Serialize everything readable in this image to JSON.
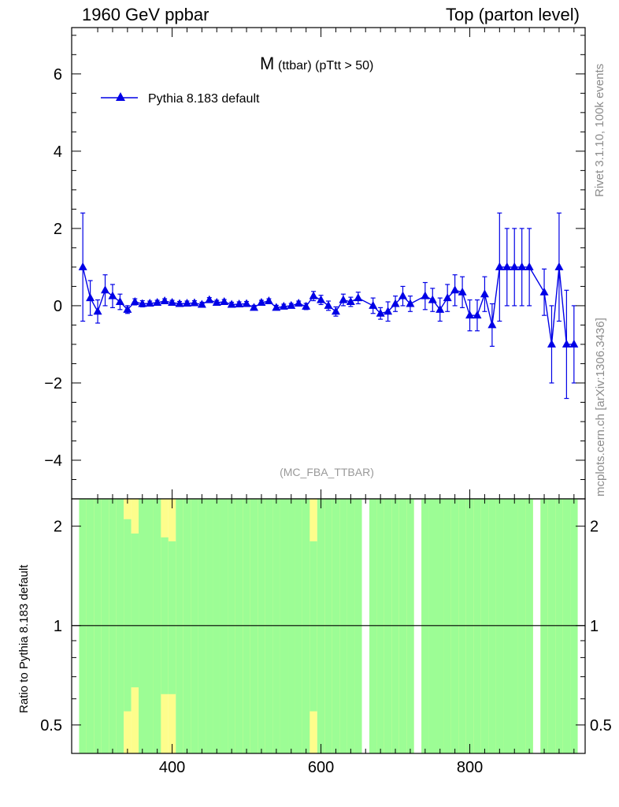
{
  "header": {
    "left": "1960 GeV ppbar",
    "right": "Top (parton level)"
  },
  "side": {
    "rivet": "Rivet 3.1.10,  100k events",
    "mcplots": "mcplots.cern.ch [arXiv:1306.3436]"
  },
  "colors": {
    "series": "#0000e6",
    "band_inner": "#9cfd95",
    "band_outer": "#fdfd8c",
    "axis": "#000000"
  },
  "chart_data": [
    {
      "type": "line",
      "title_main": "M",
      "title_sub": "(ttbar) (pTtt > 50)",
      "watermark": "(MC_FBA_TTBAR)",
      "legend": "Pythia 8.183 default",
      "legend_position": "top-left",
      "xlim": [
        265,
        955
      ],
      "ylim": [
        -5.0,
        7.2
      ],
      "y_ticks": [
        -4,
        -2,
        0,
        2,
        4,
        6
      ],
      "y_tick_labels": [
        "−4",
        "−2",
        "0",
        "2",
        "4",
        "6"
      ],
      "series": [
        {
          "name": "Pythia 8.183 default",
          "x": [
            280,
            290,
            300,
            310,
            320,
            330,
            340,
            350,
            360,
            370,
            380,
            390,
            400,
            410,
            420,
            430,
            440,
            450,
            460,
            470,
            480,
            490,
            500,
            510,
            520,
            530,
            540,
            550,
            560,
            570,
            580,
            590,
            600,
            610,
            620,
            630,
            640,
            650,
            670,
            680,
            690,
            700,
            710,
            720,
            740,
            750,
            760,
            770,
            780,
            790,
            800,
            810,
            820,
            830,
            840,
            850,
            860,
            870,
            880,
            900,
            910,
            920,
            930,
            940
          ],
          "y": [
            1.0,
            0.2,
            -0.15,
            0.4,
            0.25,
            0.1,
            -0.1,
            0.1,
            0.05,
            0.06,
            0.08,
            0.12,
            0.08,
            0.05,
            0.06,
            0.07,
            0.03,
            0.15,
            0.08,
            0.1,
            0.03,
            0.04,
            0.05,
            -0.05,
            0.08,
            0.12,
            -0.05,
            -0.02,
            0.0,
            0.06,
            -0.02,
            0.25,
            0.15,
            0.0,
            -0.15,
            0.15,
            0.1,
            0.2,
            0.0,
            -0.2,
            -0.15,
            0.05,
            0.25,
            0.05,
            0.25,
            0.15,
            -0.1,
            0.2,
            0.4,
            0.35,
            -0.25,
            -0.25,
            0.3,
            -0.5,
            1.0,
            1.0,
            1.0,
            1.0,
            1.0,
            0.35,
            -1.0,
            1.0,
            -1.0,
            -1.0
          ],
          "err": [
            1.4,
            0.45,
            0.3,
            0.4,
            0.3,
            0.2,
            0.1,
            0.08,
            0.08,
            0.06,
            0.06,
            0.06,
            0.06,
            0.06,
            0.06,
            0.06,
            0.06,
            0.06,
            0.06,
            0.06,
            0.06,
            0.06,
            0.06,
            0.06,
            0.06,
            0.06,
            0.06,
            0.06,
            0.06,
            0.06,
            0.08,
            0.12,
            0.12,
            0.12,
            0.12,
            0.15,
            0.12,
            0.15,
            0.2,
            0.15,
            0.25,
            0.2,
            0.25,
            0.2,
            0.35,
            0.3,
            0.3,
            0.35,
            0.4,
            0.4,
            0.4,
            0.4,
            0.45,
            0.55,
            1.4,
            1.0,
            1.0,
            1.0,
            1.0,
            0.6,
            1.0,
            1.4,
            1.4,
            1.0
          ]
        }
      ]
    },
    {
      "type": "bar",
      "description": "ratio panel with uncertainty bands",
      "ylabel": "Ratio to Pythia 8.183 default",
      "yscale": "log",
      "ylim": [
        0.41,
        2.42
      ],
      "y_ticks": [
        0.5,
        1,
        2
      ],
      "y_tick_labels": [
        "0.5",
        "1",
        "2"
      ],
      "xlim": [
        265,
        955
      ],
      "x_ticks": [
        400,
        600,
        800
      ],
      "x_tick_labels": [
        "400",
        "600",
        "800"
      ],
      "reference": 1,
      "bins": {
        "x": [
          280,
          290,
          300,
          310,
          320,
          330,
          340,
          350,
          360,
          370,
          380,
          390,
          400,
          410,
          420,
          430,
          440,
          450,
          460,
          470,
          480,
          490,
          500,
          510,
          520,
          530,
          540,
          550,
          560,
          570,
          580,
          590,
          600,
          610,
          620,
          630,
          640,
          650,
          670,
          680,
          690,
          700,
          710,
          720,
          740,
          750,
          760,
          770,
          780,
          790,
          800,
          810,
          820,
          830,
          840,
          850,
          860,
          870,
          880,
          900,
          910,
          920,
          930,
          940
        ],
        "inner_hi": [
          2.42,
          2.42,
          2.42,
          2.42,
          2.42,
          2.42,
          2.1,
          1.9,
          2.42,
          2.42,
          2.42,
          1.85,
          1.8,
          2.42,
          2.42,
          2.42,
          2.42,
          2.42,
          2.42,
          2.42,
          2.42,
          2.42,
          2.42,
          2.42,
          2.42,
          2.42,
          2.42,
          2.42,
          2.42,
          2.42,
          2.42,
          1.8,
          2.42,
          2.42,
          2.42,
          2.42,
          2.42,
          2.42,
          2.42,
          2.42,
          2.42,
          2.42,
          2.42,
          2.42,
          2.42,
          2.42,
          2.42,
          2.42,
          2.42,
          2.42,
          2.42,
          2.42,
          2.42,
          2.42,
          2.42,
          2.42,
          2.42,
          2.42,
          2.42,
          2.42,
          2.42,
          2.42,
          2.42,
          2.42
        ],
        "outer_hi": [
          2.42,
          2.42,
          2.42,
          2.42,
          2.42,
          2.42,
          2.42,
          2.42,
          2.42,
          2.42,
          2.42,
          2.42,
          2.42,
          2.42,
          2.42,
          2.42,
          2.42,
          2.42,
          2.42,
          2.42,
          2.42,
          2.42,
          2.42,
          2.42,
          2.42,
          2.42,
          2.42,
          2.42,
          2.42,
          2.42,
          2.42,
          2.42,
          2.42,
          2.42,
          2.42,
          2.42,
          2.42,
          2.42,
          2.42,
          2.42,
          2.42,
          2.42,
          2.42,
          2.42,
          2.42,
          2.42,
          2.42,
          2.42,
          2.42,
          2.42,
          2.42,
          2.42,
          2.42,
          2.42,
          2.42,
          2.42,
          2.42,
          2.42,
          2.42,
          2.42,
          2.42,
          2.42,
          2.42,
          2.42
        ],
        "inner_lo": [
          0.41,
          0.41,
          0.41,
          0.41,
          0.41,
          0.41,
          0.55,
          0.65,
          0.41,
          0.41,
          0.41,
          0.62,
          0.62,
          0.41,
          0.41,
          0.41,
          0.41,
          0.41,
          0.41,
          0.41,
          0.41,
          0.41,
          0.41,
          0.41,
          0.41,
          0.41,
          0.41,
          0.41,
          0.41,
          0.41,
          0.41,
          0.55,
          0.41,
          0.41,
          0.41,
          0.41,
          0.41,
          0.41,
          0.41,
          0.41,
          0.41,
          0.41,
          0.41,
          0.41,
          0.41,
          0.41,
          0.41,
          0.41,
          0.41,
          0.41,
          0.41,
          0.41,
          0.41,
          0.41,
          0.41,
          0.41,
          0.41,
          0.41,
          0.41,
          0.41,
          0.41,
          0.41,
          0.41,
          0.41
        ],
        "outer_lo": [
          0.41,
          0.41,
          0.41,
          0.41,
          0.41,
          0.41,
          0.41,
          0.41,
          0.41,
          0.41,
          0.41,
          0.41,
          0.41,
          0.41,
          0.41,
          0.41,
          0.41,
          0.41,
          0.41,
          0.41,
          0.41,
          0.41,
          0.41,
          0.41,
          0.41,
          0.41,
          0.41,
          0.41,
          0.41,
          0.41,
          0.41,
          0.41,
          0.41,
          0.41,
          0.41,
          0.41,
          0.41,
          0.41,
          0.41,
          0.41,
          0.41,
          0.41,
          0.41,
          0.41,
          0.41,
          0.41,
          0.41,
          0.41,
          0.41,
          0.41,
          0.41,
          0.41,
          0.41,
          0.41,
          0.41,
          0.41,
          0.41,
          0.41,
          0.41,
          0.41,
          0.41,
          0.41,
          0.41,
          0.41
        ]
      }
    }
  ]
}
